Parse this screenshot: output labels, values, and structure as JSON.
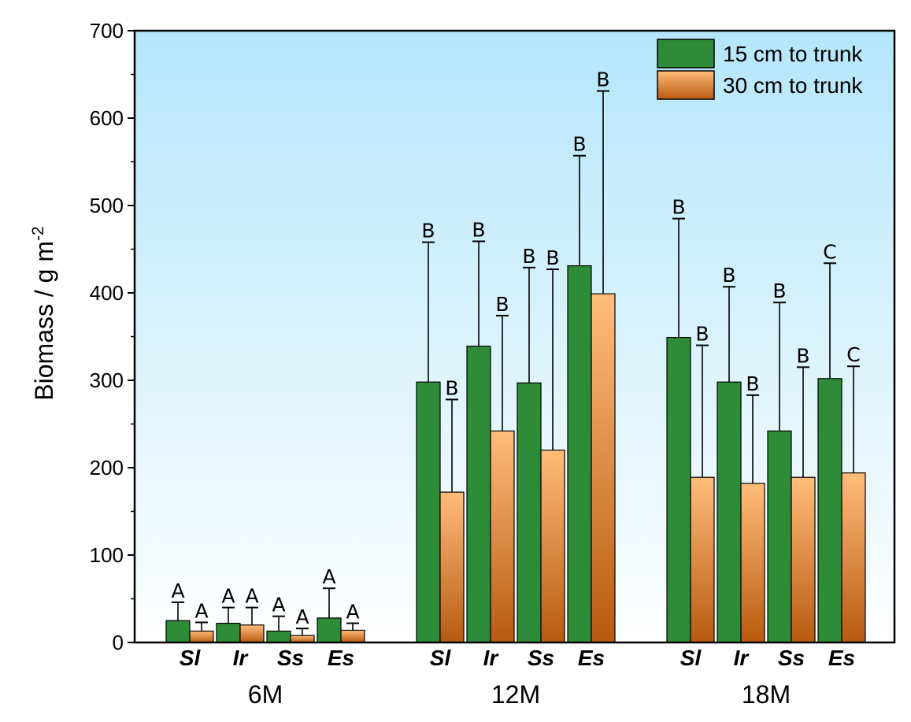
{
  "chart_data": {
    "type": "bar",
    "ylabel": "Biomass / g m",
    "ylabel_superscript": "-2",
    "ylim": [
      0,
      700
    ],
    "yticks": [
      0,
      100,
      200,
      300,
      400,
      500,
      600,
      700
    ],
    "groups": [
      "6M",
      "12M",
      "18M"
    ],
    "categories": [
      "Sl",
      "Ir",
      "Ss",
      "Es"
    ],
    "legend_position": "top-right",
    "grid": false,
    "series": [
      {
        "name": "15 cm to trunk",
        "color": "#2e8b38",
        "values": [
          [
            25,
            22,
            13,
            28
          ],
          [
            298,
            339,
            297,
            431
          ],
          [
            349,
            298,
            242,
            302
          ]
        ],
        "error_upper": [
          [
            46,
            40,
            30,
            62
          ],
          [
            458,
            459,
            429,
            557
          ],
          [
            485,
            407,
            389,
            434
          ]
        ],
        "significance": [
          [
            "A",
            "A",
            "A",
            "A"
          ],
          [
            "B",
            "B",
            "B",
            "B"
          ],
          [
            "B",
            "B",
            "B",
            "C"
          ]
        ]
      },
      {
        "name": "30 cm to trunk",
        "color_top": "#ffbd7a",
        "color_bottom": "#b85a10",
        "values": [
          [
            13,
            20,
            8,
            14
          ],
          [
            172,
            242,
            220,
            399
          ],
          [
            189,
            182,
            189,
            194
          ]
        ],
        "error_upper": [
          [
            23,
            40,
            16,
            22
          ],
          [
            278,
            374,
            427,
            631
          ],
          [
            340,
            283,
            315,
            316
          ]
        ],
        "significance": [
          [
            "A",
            "A",
            "A",
            "A"
          ],
          [
            "B",
            "B",
            "B",
            "B"
          ],
          [
            "B",
            "B",
            "B",
            "C"
          ]
        ]
      }
    ]
  }
}
